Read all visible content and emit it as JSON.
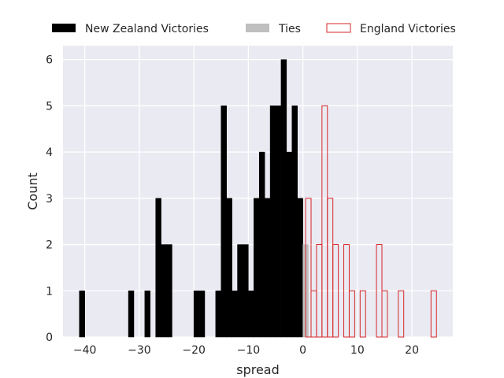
{
  "chart_data": {
    "type": "bar",
    "xlabel": "spread",
    "ylabel": "Count",
    "xlim": [
      -44,
      27.5
    ],
    "ylim": [
      0,
      6.3
    ],
    "xticks": [
      -40,
      -30,
      -20,
      -10,
      0,
      10,
      20
    ],
    "xtick_labels": [
      "−40",
      "−30",
      "−20",
      "−10",
      "0",
      "10",
      "20"
    ],
    "yticks": [
      0,
      1,
      2,
      3,
      4,
      5,
      6
    ],
    "ytick_labels": [
      "0",
      "1",
      "2",
      "3",
      "4",
      "5",
      "6"
    ],
    "grid": true,
    "legend_position": "top",
    "bin_width": 1,
    "background": "#eaeaf2",
    "series": [
      {
        "name": "New Zealand Victories",
        "color": "#000000",
        "style": "filled",
        "bins": [
          [
            -41,
            1
          ],
          [
            -32,
            1
          ],
          [
            -29,
            1
          ],
          [
            -27,
            3
          ],
          [
            -26,
            2
          ],
          [
            -25,
            2
          ],
          [
            -20,
            1
          ],
          [
            -19,
            1
          ],
          [
            -16,
            1
          ],
          [
            -15,
            5
          ],
          [
            -14,
            3
          ],
          [
            -13,
            1
          ],
          [
            -12,
            2
          ],
          [
            -11,
            2
          ],
          [
            -10,
            1
          ],
          [
            -9,
            3
          ],
          [
            -8,
            4
          ],
          [
            -7,
            3
          ],
          [
            -6,
            5
          ],
          [
            -5,
            5
          ],
          [
            -4,
            6
          ],
          [
            -3,
            4
          ],
          [
            -2,
            5
          ],
          [
            -1,
            3
          ]
        ]
      },
      {
        "name": "Ties",
        "color": "#bfbfbf",
        "style": "filled",
        "bins": [
          [
            0,
            2
          ]
        ]
      },
      {
        "name": "England Victories",
        "color": "#d62728",
        "style": "outline",
        "bins": [
          [
            0.5,
            3
          ],
          [
            1.5,
            1
          ],
          [
            2.5,
            2
          ],
          [
            3.5,
            5
          ],
          [
            4.5,
            3
          ],
          [
            5.5,
            2
          ],
          [
            7.5,
            2
          ],
          [
            8.5,
            1
          ],
          [
            10.5,
            1
          ],
          [
            13.5,
            2
          ],
          [
            14.5,
            1
          ],
          [
            17.5,
            1
          ],
          [
            23.5,
            1
          ]
        ]
      }
    ]
  }
}
